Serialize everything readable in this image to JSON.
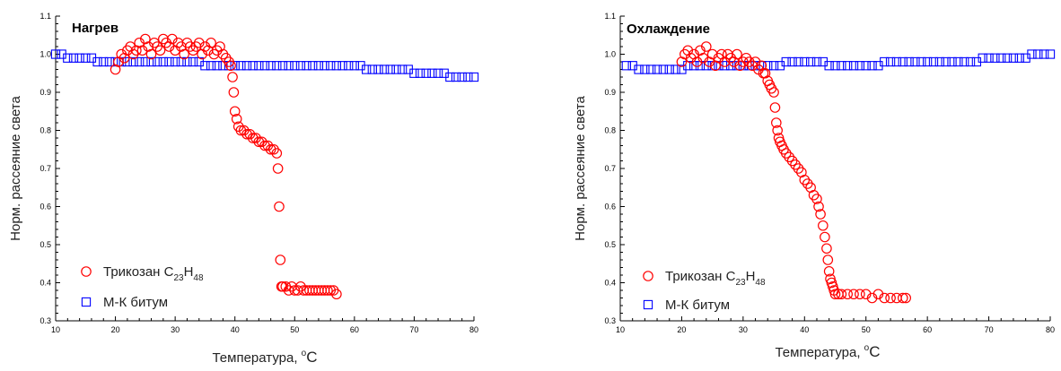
{
  "chart_data": [
    {
      "type": "scatter",
      "title": "Нагрев",
      "xlabel": "Температура, °C",
      "xlabel_parts": {
        "main": "Температура, ",
        "sup": "o",
        "unit": "C"
      },
      "ylabel": "Норм. рассеяние света",
      "xlim": [
        10,
        80
      ],
      "ylim": [
        0.3,
        1.1
      ],
      "xticks": [
        10,
        20,
        30,
        40,
        50,
        60,
        70,
        80
      ],
      "yticks": [
        0.3,
        0.4,
        0.5,
        0.6,
        0.7,
        0.8,
        0.9,
        1.0,
        1.1
      ],
      "ytick_labels": [
        "0.3",
        "0.4",
        "0.5",
        "0.6",
        "0.7",
        "0.8",
        "0.9",
        "1.0",
        "1.1"
      ],
      "legend_position": "lower-left",
      "series": [
        {
          "name": "Трикозан C23H48",
          "legend": {
            "text": "Трикозан C",
            "sub1": "23",
            "mid": "H",
            "sub2": "48"
          },
          "marker": "circle",
          "color": "#ff0000",
          "x": [
            20,
            20.5,
            21,
            21.5,
            22,
            22.5,
            23,
            23.5,
            24,
            24.5,
            25,
            25.5,
            26,
            26.5,
            27,
            27.5,
            28,
            28.5,
            29,
            29.5,
            30,
            30.5,
            31,
            31.5,
            32,
            32.5,
            33,
            33.5,
            34,
            34.5,
            35,
            35.5,
            36,
            36.5,
            37,
            37.5,
            38,
            38.5,
            39,
            39.3,
            39.6,
            39.8,
            40,
            40.3,
            40.6,
            41,
            41.5,
            42,
            42.5,
            43,
            43.5,
            44,
            44.5,
            45,
            45.5,
            46,
            46.5,
            47,
            47.2,
            47.4,
            47.6,
            47.8,
            48,
            48.5,
            49,
            49.5,
            50,
            50.5,
            51,
            51.5,
            52,
            52.5,
            53,
            53.5,
            54,
            54.5,
            55,
            55.5,
            56,
            56.5,
            57
          ],
          "y": [
            0.96,
            0.98,
            1.0,
            0.99,
            1.01,
            1.02,
            1.0,
            1.01,
            1.03,
            1.01,
            1.04,
            1.02,
            1.0,
            1.03,
            1.02,
            1.01,
            1.04,
            1.03,
            1.02,
            1.04,
            1.01,
            1.03,
            1.02,
            1.0,
            1.03,
            1.02,
            1.01,
            1.02,
            1.03,
            1.0,
            1.02,
            1.01,
            1.03,
            1.0,
            1.01,
            1.02,
            1.0,
            0.99,
            0.98,
            0.97,
            0.94,
            0.9,
            0.85,
            0.83,
            0.81,
            0.8,
            0.8,
            0.79,
            0.79,
            0.78,
            0.78,
            0.77,
            0.77,
            0.76,
            0.76,
            0.75,
            0.75,
            0.74,
            0.7,
            0.6,
            0.46,
            0.39,
            0.39,
            0.39,
            0.38,
            0.39,
            0.38,
            0.38,
            0.39,
            0.38,
            0.38,
            0.38,
            0.38,
            0.38,
            0.38,
            0.38,
            0.38,
            0.38,
            0.38,
            0.38,
            0.37
          ]
        },
        {
          "name": "М-К битум",
          "legend": {
            "text": "М-К битум"
          },
          "marker": "square",
          "color": "#0000ff",
          "x": [
            10,
            11,
            12,
            13,
            14,
            15,
            16,
            17,
            18,
            19,
            20,
            21,
            22,
            23,
            24,
            25,
            26,
            27,
            28,
            29,
            30,
            31,
            32,
            33,
            34,
            35,
            36,
            37,
            38,
            39,
            40,
            41,
            42,
            43,
            44,
            45,
            46,
            47,
            48,
            49,
            50,
            51,
            52,
            53,
            54,
            55,
            56,
            57,
            58,
            59,
            60,
            61,
            62,
            63,
            64,
            65,
            66,
            67,
            68,
            69,
            70,
            71,
            72,
            73,
            74,
            75,
            76,
            77,
            78,
            79,
            80
          ],
          "y": [
            1.0,
            1.0,
            0.99,
            0.99,
            0.99,
            0.99,
            0.99,
            0.98,
            0.98,
            0.98,
            0.98,
            0.98,
            0.98,
            0.98,
            0.98,
            0.98,
            0.98,
            0.98,
            0.98,
            0.98,
            0.98,
            0.98,
            0.98,
            0.98,
            0.98,
            0.97,
            0.97,
            0.97,
            0.97,
            0.97,
            0.97,
            0.97,
            0.97,
            0.97,
            0.97,
            0.97,
            0.97,
            0.97,
            0.97,
            0.97,
            0.97,
            0.97,
            0.97,
            0.97,
            0.97,
            0.97,
            0.97,
            0.97,
            0.97,
            0.97,
            0.97,
            0.97,
            0.96,
            0.96,
            0.96,
            0.96,
            0.96,
            0.96,
            0.96,
            0.96,
            0.95,
            0.95,
            0.95,
            0.95,
            0.95,
            0.95,
            0.94,
            0.94,
            0.94,
            0.94,
            0.94
          ]
        }
      ]
    },
    {
      "type": "scatter",
      "title": "Охлаждение",
      "xlabel": "Температура, °C",
      "xlabel_parts": {
        "main": "Температура, ",
        "sup": "o",
        "unit": "C"
      },
      "ylabel": "Норм. рассеяние света",
      "xlim": [
        10,
        80
      ],
      "ylim": [
        0.3,
        1.1
      ],
      "xticks": [
        10,
        20,
        30,
        40,
        50,
        60,
        70,
        80
      ],
      "yticks": [
        0.3,
        0.4,
        0.5,
        0.6,
        0.7,
        0.8,
        0.9,
        1.0,
        1.1
      ],
      "ytick_labels": [
        "0.3",
        "0.4",
        "0.5",
        "0.6",
        "0.7",
        "0.8",
        "0.9",
        "1.0",
        "1.1"
      ],
      "legend_position": "lower-left",
      "series": [
        {
          "name": "Трикозан C23H48",
          "legend": {
            "text": "Трикозан C",
            "sub1": "23",
            "mid": "H",
            "sub2": "48"
          },
          "marker": "circle",
          "color": "#ff0000",
          "x": [
            20,
            20.5,
            21,
            21.5,
            22,
            22.5,
            23,
            23.5,
            24,
            24.5,
            25,
            25.5,
            26,
            26.5,
            27,
            27.5,
            28,
            28.5,
            29,
            29.5,
            30,
            30.5,
            31,
            31.5,
            32,
            32.5,
            33,
            33.3,
            33.6,
            34,
            34.3,
            34.6,
            35,
            35.2,
            35.4,
            35.6,
            35.8,
            36,
            36.3,
            36.6,
            37,
            37.5,
            38,
            38.5,
            39,
            39.5,
            40,
            40.5,
            41,
            41.5,
            42,
            42.3,
            42.6,
            43,
            43.3,
            43.6,
            43.8,
            44,
            44.2,
            44.4,
            44.6,
            44.8,
            45,
            45.5,
            46,
            47,
            48,
            49,
            50,
            51,
            52,
            53,
            54,
            55,
            56,
            56.5
          ],
          "y": [
            0.98,
            1.0,
            1.01,
            0.99,
            1.0,
            0.98,
            1.01,
            0.99,
            1.02,
            0.98,
            1.0,
            0.97,
            0.99,
            1.0,
            0.98,
            1.0,
            0.99,
            0.98,
            1.0,
            0.97,
            0.98,
            0.99,
            0.98,
            0.97,
            0.98,
            0.96,
            0.97,
            0.95,
            0.95,
            0.93,
            0.92,
            0.91,
            0.9,
            0.86,
            0.82,
            0.8,
            0.78,
            0.77,
            0.76,
            0.75,
            0.74,
            0.73,
            0.72,
            0.71,
            0.7,
            0.69,
            0.67,
            0.66,
            0.65,
            0.63,
            0.62,
            0.6,
            0.58,
            0.55,
            0.52,
            0.49,
            0.46,
            0.43,
            0.41,
            0.4,
            0.39,
            0.38,
            0.37,
            0.37,
            0.37,
            0.37,
            0.37,
            0.37,
            0.37,
            0.36,
            0.37,
            0.36,
            0.36,
            0.36,
            0.36,
            0.36
          ]
        },
        {
          "name": "М-К битум",
          "legend": {
            "text": "М-К битум"
          },
          "marker": "square",
          "color": "#0000ff",
          "x": [
            11,
            12,
            13,
            14,
            15,
            16,
            17,
            18,
            19,
            20,
            21,
            22,
            23,
            24,
            25,
            26,
            27,
            28,
            29,
            30,
            31,
            32,
            33,
            34,
            35,
            36,
            37,
            38,
            39,
            40,
            41,
            42,
            43,
            44,
            45,
            46,
            47,
            48,
            49,
            50,
            51,
            52,
            53,
            54,
            55,
            56,
            57,
            58,
            59,
            60,
            61,
            62,
            63,
            64,
            65,
            66,
            67,
            68,
            69,
            70,
            71,
            72,
            73,
            74,
            75,
            76,
            77,
            78,
            79,
            80
          ],
          "y": [
            0.97,
            0.97,
            0.96,
            0.96,
            0.96,
            0.96,
            0.96,
            0.96,
            0.96,
            0.96,
            0.97,
            0.97,
            0.97,
            0.97,
            0.97,
            0.97,
            0.97,
            0.97,
            0.97,
            0.97,
            0.97,
            0.97,
            0.97,
            0.97,
            0.97,
            0.97,
            0.98,
            0.98,
            0.98,
            0.98,
            0.98,
            0.98,
            0.98,
            0.97,
            0.97,
            0.97,
            0.97,
            0.97,
            0.97,
            0.97,
            0.97,
            0.97,
            0.98,
            0.98,
            0.98,
            0.98,
            0.98,
            0.98,
            0.98,
            0.98,
            0.98,
            0.98,
            0.98,
            0.98,
            0.98,
            0.98,
            0.98,
            0.98,
            0.99,
            0.99,
            0.99,
            0.99,
            0.99,
            0.99,
            0.99,
            0.99,
            1.0,
            1.0,
            1.0,
            1.0
          ]
        }
      ]
    }
  ]
}
